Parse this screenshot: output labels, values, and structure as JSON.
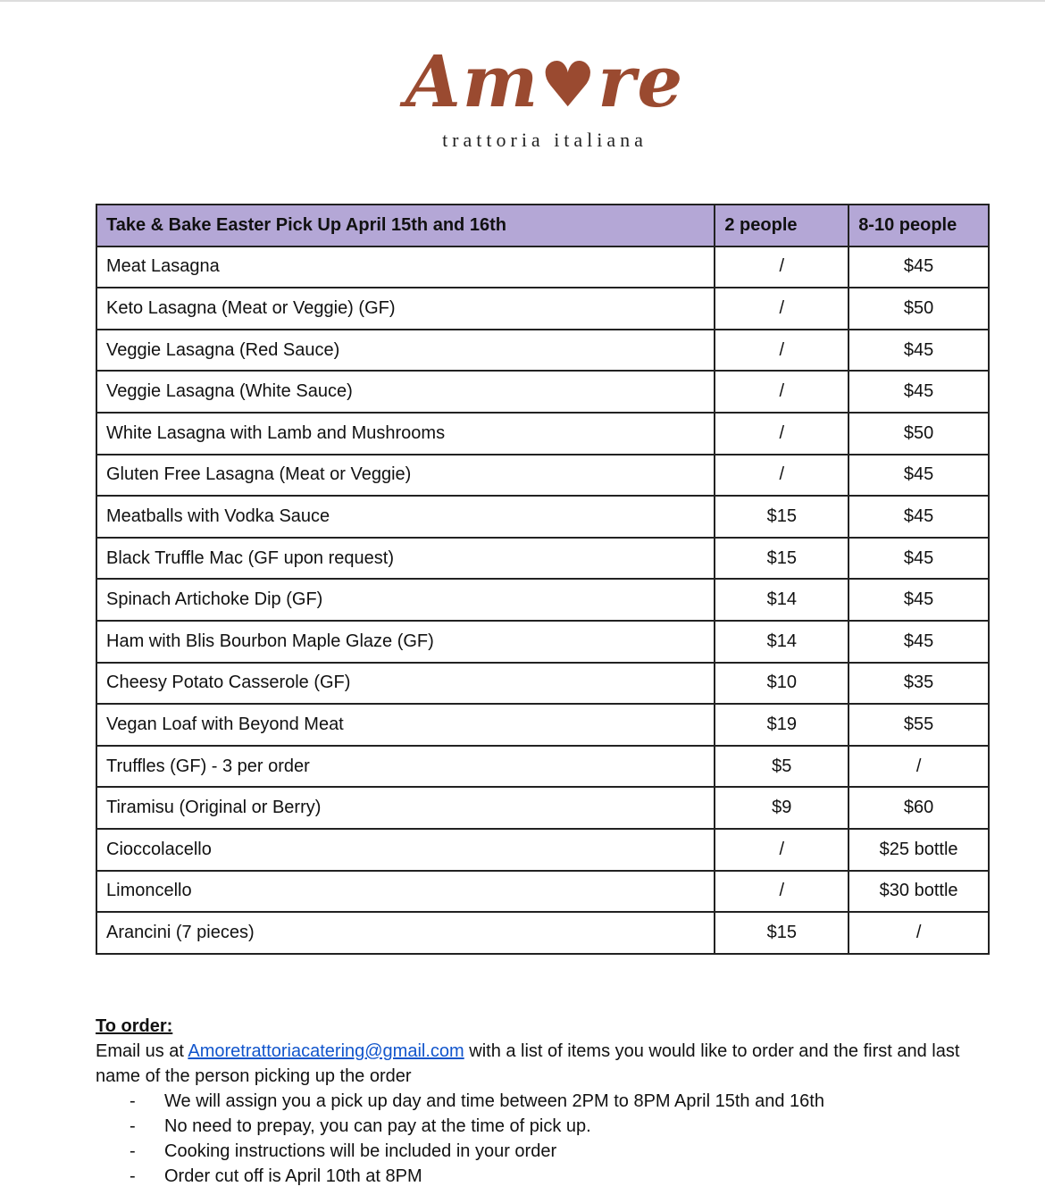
{
  "logo": {
    "name": "Amore",
    "subtitle": "trattoria italiana",
    "color": "#9a4a30"
  },
  "table": {
    "headers": [
      "Take & Bake Easter Pick Up April 15th and 16th",
      "2 people",
      "8-10 people"
    ],
    "header_color": "#b4a7d6",
    "rows": [
      [
        "Meat Lasagna",
        "/",
        "$45"
      ],
      [
        "Keto Lasagna (Meat or Veggie) (GF)",
        "/",
        "$50"
      ],
      [
        "Veggie Lasagna (Red Sauce)",
        "/",
        "$45"
      ],
      [
        "Veggie Lasagna (White Sauce)",
        "/",
        "$45"
      ],
      [
        "White Lasagna with Lamb and Mushrooms",
        "/",
        "$50"
      ],
      [
        "Gluten Free Lasagna (Meat or Veggie)",
        "/",
        "$45"
      ],
      [
        "Meatballs with Vodka Sauce",
        "$15",
        "$45"
      ],
      [
        "Black Truffle Mac (GF upon request)",
        "$15",
        "$45"
      ],
      [
        "Spinach Artichoke Dip (GF)",
        "$14",
        "$45"
      ],
      [
        "Ham with Blis Bourbon Maple Glaze (GF)",
        "$14",
        "$45"
      ],
      [
        "Cheesy Potato Casserole (GF)",
        "$10",
        "$35"
      ],
      [
        "Vegan Loaf with Beyond Meat",
        "$19",
        "$55"
      ],
      [
        "Truffles (GF) - 3 per order",
        "$5",
        "/"
      ],
      [
        "Tiramisu (Original or Berry)",
        "$9",
        "$60"
      ],
      [
        "Cioccolacello",
        "/",
        "$25 bottle"
      ],
      [
        "Limoncello",
        "/",
        "$30 bottle"
      ],
      [
        "Arancini (7 pieces)",
        "$15",
        "/"
      ]
    ]
  },
  "order": {
    "heading": "To order:",
    "intro_before": "Email us at ",
    "email": "Amoretrattoriacatering@gmail.com",
    "intro_after": " with a list of items you would like to order and the first and last name of the person picking up the order",
    "bullets": [
      "We will assign you a pick up day and time between 2PM to 8PM April 15th and 16th",
      "No need to prepay, you can pay at the time of pick up.",
      "Cooking instructions will be included in your order",
      "Order cut off is April 10th at 8PM"
    ]
  }
}
